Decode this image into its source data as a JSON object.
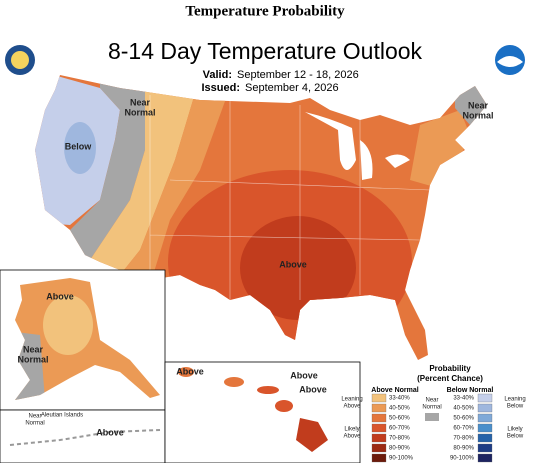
{
  "header": {
    "title": "Temperature Probability",
    "map_title": "8-14 Day Temperature Outlook",
    "valid_label": "Valid:",
    "valid_dates": "September 12 - 18, 2026",
    "issued_label": "Issued:",
    "issued_date": "September 4, 2026"
  },
  "map_labels": [
    {
      "lines": [
        "Near",
        "Normal"
      ]
    },
    {
      "lines": [
        "Below"
      ]
    },
    {
      "lines": [
        "Near",
        "Normal"
      ]
    },
    {
      "lines": [
        "Above"
      ]
    },
    {
      "lines": [
        "Above"
      ]
    },
    {
      "lines": [
        "Near",
        "Normal"
      ]
    },
    {
      "lines": [
        "Near",
        "Normal"
      ]
    },
    {
      "lines": [
        "Aleutian Islands"
      ]
    },
    {
      "lines": [
        "Above"
      ]
    },
    {
      "lines": [
        "Above"
      ]
    },
    {
      "lines": [
        "Above"
      ]
    },
    {
      "lines": [
        "Above"
      ]
    }
  ],
  "legend": {
    "title": "Probability",
    "subtitle": "(Percent Chance)",
    "above": {
      "heading": "Above Normal",
      "leaning": [
        "Leaning",
        "Above"
      ],
      "likely": [
        "Likely",
        "Above"
      ],
      "bins": [
        "33-40%",
        "40-50%",
        "50-60%",
        "60-70%",
        "70-80%",
        "80-90%",
        "90-100%"
      ],
      "colors": [
        "#f2c27c",
        "#eb9a55",
        "#e4763c",
        "#d9552b",
        "#c13c1d",
        "#9c2a13",
        "#6c1a0b"
      ]
    },
    "below": {
      "heading": "Below Normal",
      "leaning": [
        "Leaning",
        "Below"
      ],
      "likely": [
        "Likely",
        "Below"
      ],
      "bins": [
        "33-40%",
        "40-50%",
        "50-60%",
        "60-70%",
        "70-80%",
        "80-90%",
        "90-100%"
      ],
      "colors": [
        "#c5cfea",
        "#9fb7de",
        "#7fa9d8",
        "#4a8fcb",
        "#2663a9",
        "#1e3d85",
        "#1d2461"
      ]
    },
    "near": {
      "label": [
        "Near",
        "Normal"
      ],
      "color": "#a6a6a6"
    }
  }
}
